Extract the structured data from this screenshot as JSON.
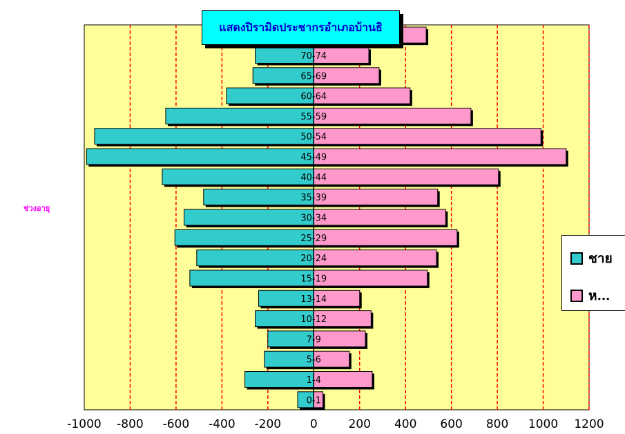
{
  "colors": {
    "plot_bg": "#ffff99",
    "male": "#33cccc",
    "female": "#ff99cc",
    "grid": "#ff0000",
    "title_bg": "#00ffff",
    "title_text": "#0000cc",
    "ylabel": "#ff00ff"
  },
  "chart_data": {
    "type": "bar",
    "orientation": "horizontal",
    "title": "แสดงปิรามิดประชากรอำเภอบ้านธิ",
    "xlabel": "",
    "ylabel": "ช่วงอายุ",
    "xlim": [
      -1000,
      1200
    ],
    "xticks": [
      -1000,
      -800,
      -600,
      -400,
      -200,
      0,
      200,
      400,
      600,
      800,
      1000,
      1200
    ],
    "grid": "vertical dashed",
    "legend_position": "right",
    "categories": [
      "0-1",
      "1-4",
      "5-6",
      "7-9",
      "10-12",
      "13-14",
      "15-19",
      "20-24",
      "25-29",
      "30-34",
      "35-39",
      "40-44",
      "45-49",
      "50-54",
      "55-59",
      "60-64",
      "65-69",
      "70-74",
      ""
    ],
    "series": [
      {
        "name": "ชาย",
        "legend_label": "ชาย",
        "color": "#33cccc",
        "values": [
          -70,
          -300,
          -215,
          -200,
          -255,
          -240,
          -540,
          -510,
          -605,
          -565,
          -480,
          -660,
          -990,
          -955,
          -645,
          -380,
          -265,
          -255,
          0
        ]
      },
      {
        "name": "หญิง",
        "legend_label": "ห…",
        "color": "#ff99cc",
        "values": [
          40,
          255,
          155,
          225,
          250,
          200,
          495,
          535,
          625,
          575,
          540,
          805,
          1100,
          990,
          685,
          420,
          285,
          240,
          490
        ]
      }
    ]
  }
}
